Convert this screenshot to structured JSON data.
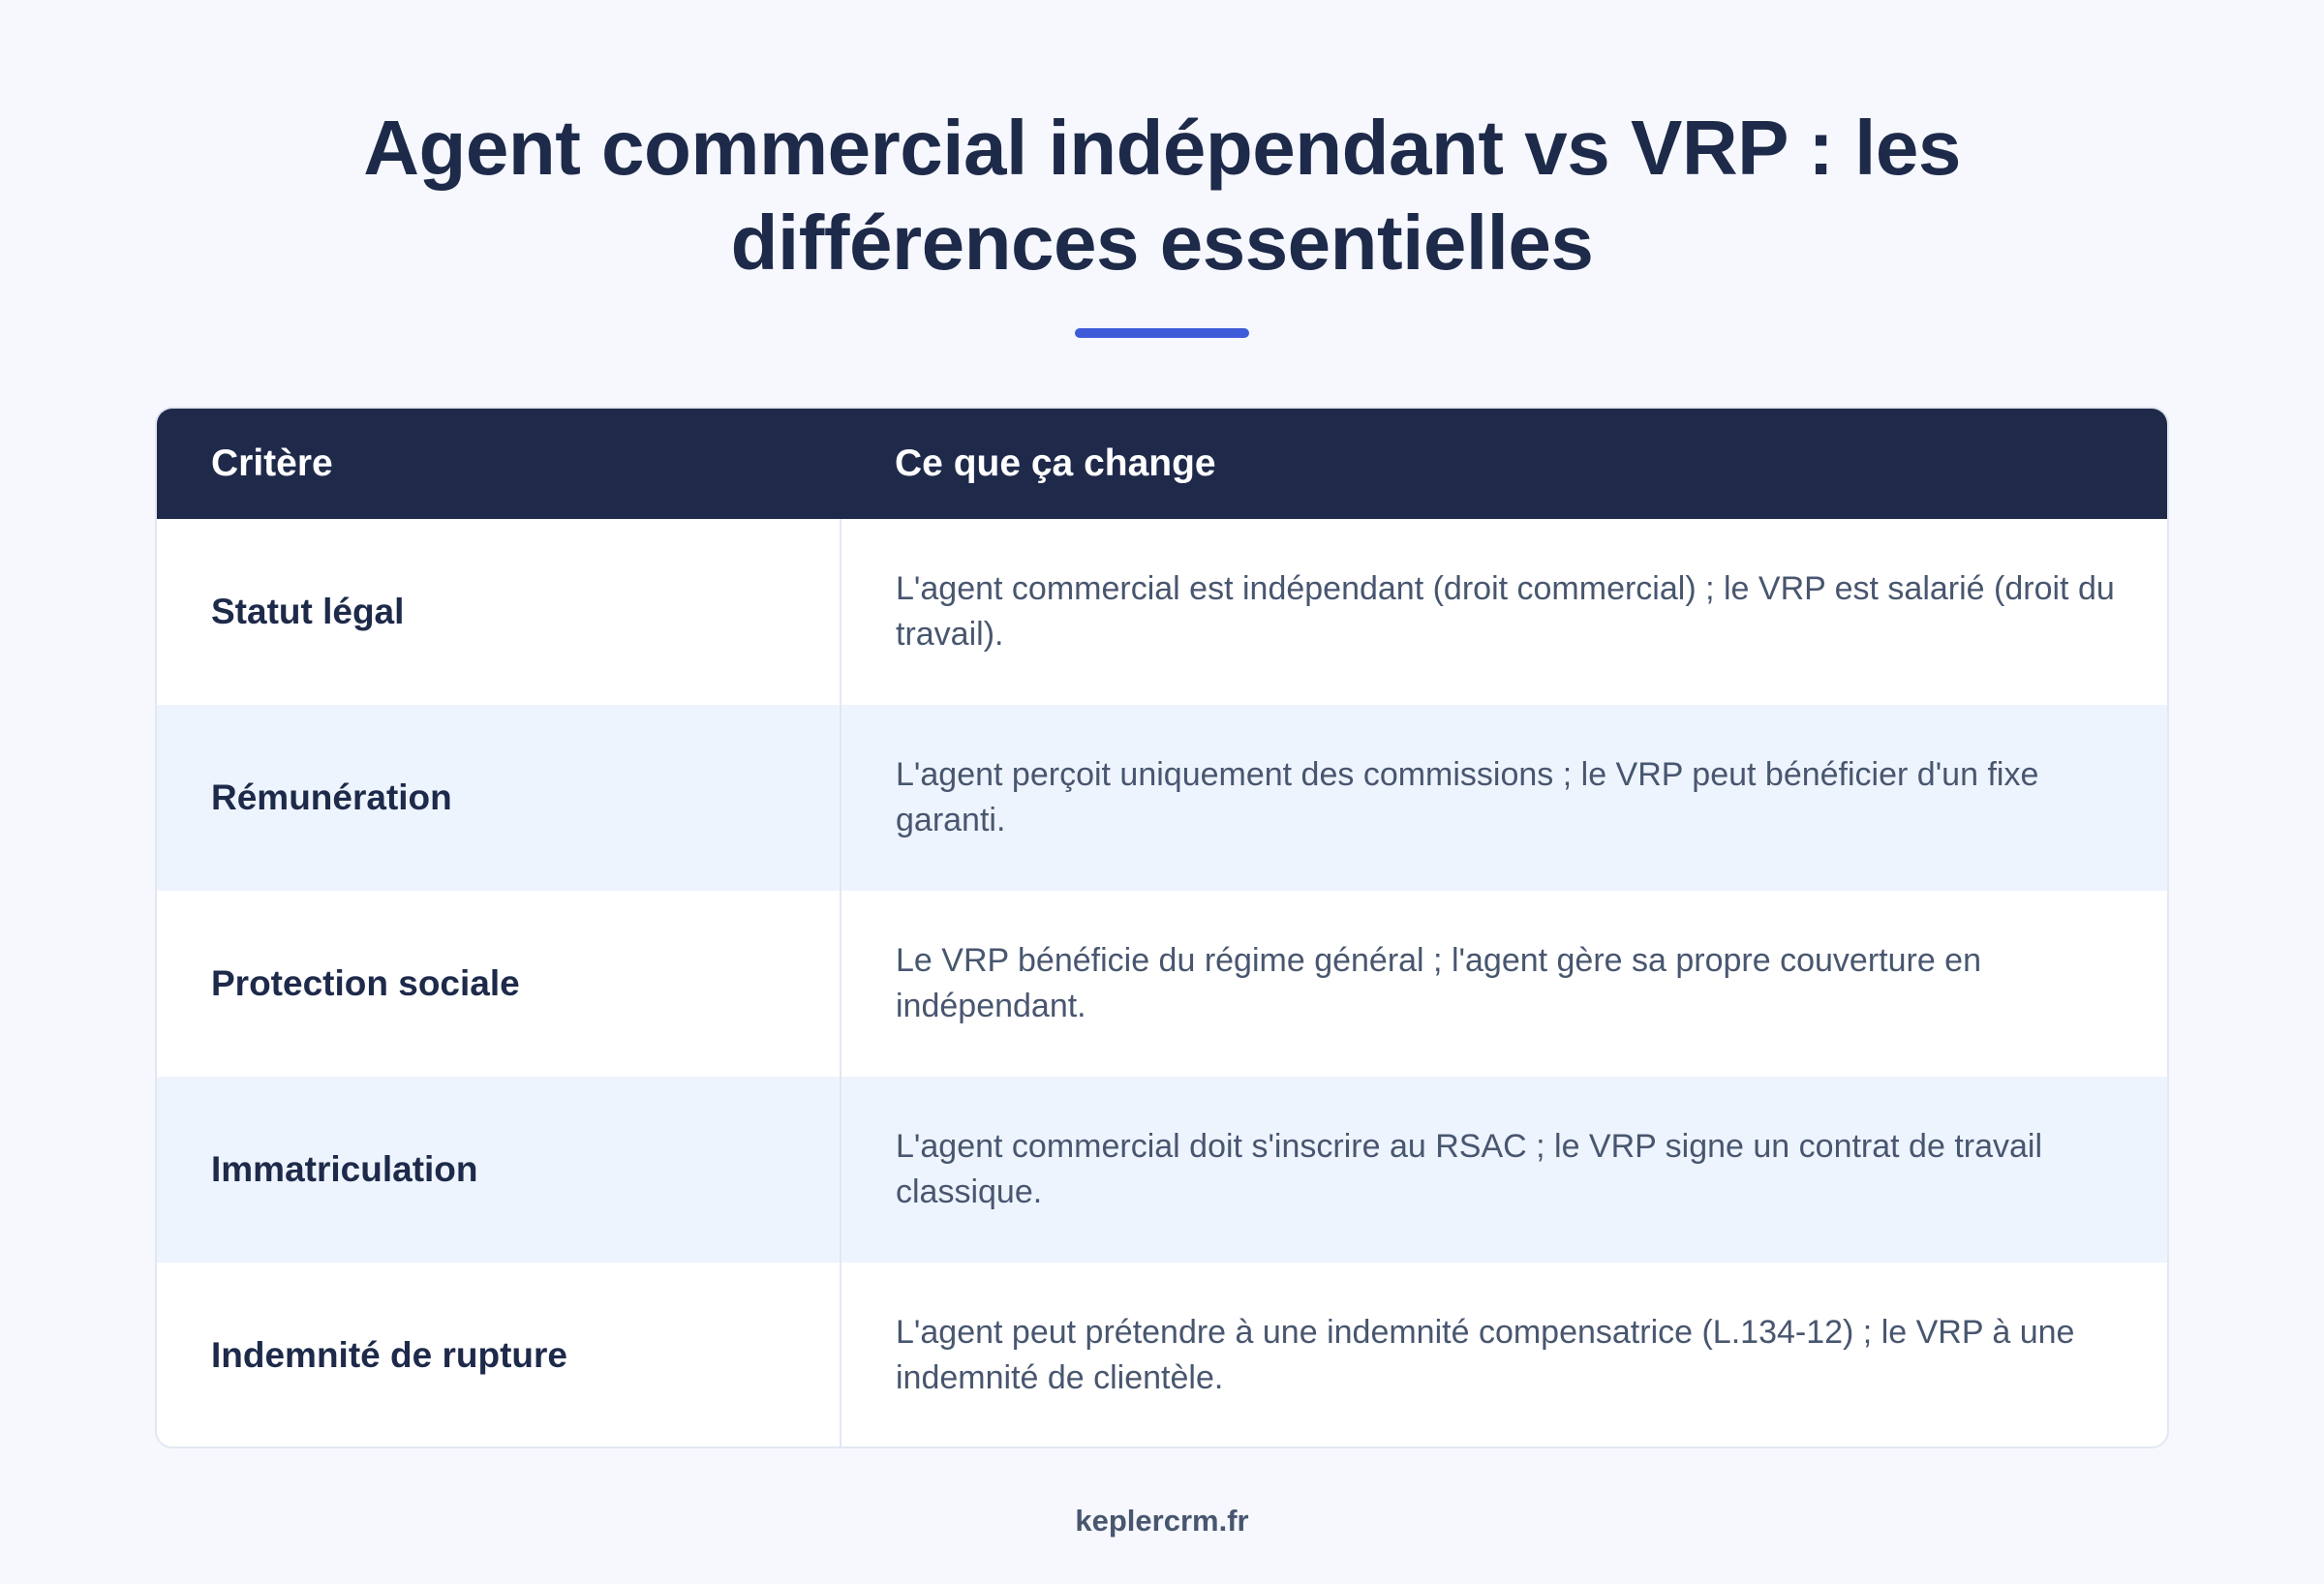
{
  "header": {
    "title_line1": "Agent commercial indépendant vs VRP : les",
    "title_line2": "différences essentielles",
    "accent_color": "#3f5bd8"
  },
  "table": {
    "columns": [
      "Critère",
      "Ce que ça change"
    ],
    "header_color": "#1f2a4b",
    "rows": [
      {
        "criterion": "Statut légal",
        "change": "L'agent commercial est indépendant (droit commercial) ; le VRP est salarié (droit du travail)."
      },
      {
        "criterion": "Rémunération",
        "change": "L'agent perçoit uniquement des commissions ; le VRP peut bénéficier d'un fixe garanti."
      },
      {
        "criterion": "Protection sociale",
        "change": "Le VRP bénéficie du régime général ; l'agent gère sa propre couverture en indépendant."
      },
      {
        "criterion": "Immatriculation",
        "change": "L'agent commercial doit s'inscrire au RSAC ; le VRP signe un contrat de travail classique."
      },
      {
        "criterion": "Indemnité de rupture",
        "change": "L'agent peut prétendre à une indemnité compensatrice (L.134-12) ; le VRP à une indemnité de clientèle."
      }
    ]
  },
  "footer": {
    "brand": "keplercrm.fr"
  }
}
